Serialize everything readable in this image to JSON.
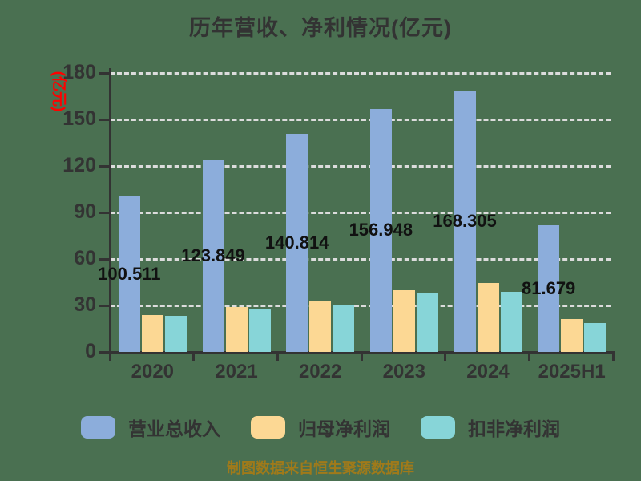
{
  "title": "历年营收、净利情况(亿元)",
  "y_axis_name": "(亿元)",
  "footer": "制图数据来自恒生聚源数据库",
  "colors": {
    "background": "#4A7051",
    "title": "#333333",
    "axis": "#333333",
    "grid": "#DCDCDC",
    "tick_label": "#333333",
    "value_label": "#111111",
    "y_axis_name": "#FF0000",
    "footer": "#A07A1A"
  },
  "chart_data": {
    "type": "bar",
    "title": "历年营收、净利情况(亿元)",
    "xlabel": "",
    "ylabel": "(亿元)",
    "categories": [
      "2020",
      "2021",
      "2022",
      "2023",
      "2024",
      "2025H1"
    ],
    "series": [
      {
        "name": "营业总收入",
        "color": "#8CADDB",
        "values": [
          100.511,
          123.849,
          140.814,
          156.948,
          168.305,
          81.679
        ],
        "value_labels": [
          "100.511",
          "123.849",
          "140.814",
          "156.948",
          "168.305",
          "81.679"
        ]
      },
      {
        "name": "归母净利润",
        "color": "#FCD894",
        "values": [
          23.7,
          28.9,
          33.0,
          40.0,
          44.4,
          21.4
        ],
        "value_labels": []
      },
      {
        "name": "扣非净利润",
        "color": "#87D5D8",
        "values": [
          23.1,
          27.5,
          30.2,
          38.3,
          38.6,
          18.8
        ],
        "value_labels": []
      }
    ],
    "ylim": [
      0,
      180
    ],
    "yticks": [
      0,
      30,
      60,
      90,
      120,
      150,
      180
    ],
    "grid": "dashed-horizontal",
    "legend_position": "bottom"
  }
}
